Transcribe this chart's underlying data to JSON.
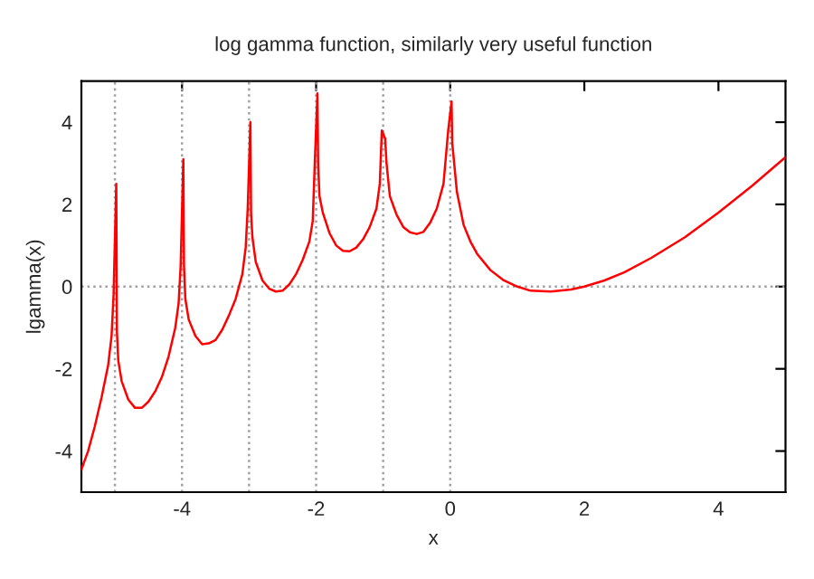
{
  "chart_data": {
    "type": "line",
    "title": "log gamma function, similarly very useful function",
    "xlabel": "x",
    "ylabel": "lgamma(x)",
    "xlim": [
      -5.5,
      5
    ],
    "ylim": [
      -5,
      5
    ],
    "xticks": [
      -4,
      -2,
      0,
      2,
      4
    ],
    "yticks": [
      -4,
      -2,
      0,
      2,
      4
    ],
    "grid": false,
    "legend": false,
    "marker": "none",
    "line_style": "solid",
    "ref_lines": [
      {
        "axis": "y",
        "value": 0,
        "color": "#a0a0a0",
        "line_style": "dotted"
      },
      {
        "axis": "x",
        "value": -5,
        "color": "#a0a0a0",
        "line_style": "dotted"
      },
      {
        "axis": "x",
        "value": -4,
        "color": "#a0a0a0",
        "line_style": "dotted"
      },
      {
        "axis": "x",
        "value": -3,
        "color": "#a0a0a0",
        "line_style": "dotted"
      },
      {
        "axis": "x",
        "value": -2,
        "color": "#a0a0a0",
        "line_style": "dotted"
      },
      {
        "axis": "x",
        "value": -1,
        "color": "#a0a0a0",
        "line_style": "dotted"
      },
      {
        "axis": "x",
        "value": 0,
        "color": "#a0a0a0",
        "line_style": "dotted"
      }
    ],
    "series": [
      {
        "color": "#ff0000",
        "x": [
          -5.5,
          -5.4,
          -5.3,
          -5.2,
          -5.1,
          -5.05,
          -5.02,
          -5.0,
          -4.98,
          -4.97,
          -4.95,
          -4.9,
          -4.8,
          -4.7,
          -4.6,
          -4.5,
          -4.4,
          -4.3,
          -4.2,
          -4.1,
          -4.05,
          -4.02,
          -4.0,
          -3.98,
          -3.97,
          -3.95,
          -3.9,
          -3.8,
          -3.7,
          -3.6,
          -3.5,
          -3.4,
          -3.3,
          -3.2,
          -3.1,
          -3.05,
          -3.02,
          -3.0,
          -2.98,
          -2.97,
          -2.95,
          -2.9,
          -2.8,
          -2.7,
          -2.6,
          -2.5,
          -2.4,
          -2.3,
          -2.2,
          -2.1,
          -2.05,
          -2.02,
          -2.0,
          -1.98,
          -1.97,
          -1.95,
          -1.9,
          -1.8,
          -1.7,
          -1.6,
          -1.5,
          -1.4,
          -1.3,
          -1.2,
          -1.1,
          -1.05,
          -1.02,
          -1.0,
          -0.98,
          -0.97,
          -0.95,
          -0.9,
          -0.8,
          -0.7,
          -0.6,
          -0.5,
          -0.4,
          -0.3,
          -0.2,
          -0.1,
          -0.03,
          0.0,
          0.02,
          0.03,
          0.1,
          0.2,
          0.3,
          0.4,
          0.6,
          0.8,
          1.0,
          1.2,
          1.5,
          1.8,
          2.0,
          2.3,
          2.6,
          3.0,
          3.5,
          4.0,
          4.5,
          5.0
        ],
        "values": [
          -4.45,
          -4.0,
          -3.4,
          -2.7,
          -1.9,
          -1.2,
          -0.2,
          null,
          2.5,
          -1.1,
          -1.8,
          -2.3,
          -2.75,
          -2.95,
          -2.95,
          -2.8,
          -2.55,
          -2.2,
          -1.7,
          -1.0,
          -0.4,
          0.5,
          null,
          3.1,
          0.5,
          -0.3,
          -0.8,
          -1.2,
          -1.4,
          -1.38,
          -1.3,
          -1.05,
          -0.7,
          -0.3,
          0.3,
          0.95,
          1.9,
          null,
          4.0,
          1.8,
          1.2,
          0.6,
          0.15,
          -0.05,
          -0.12,
          -0.1,
          0.05,
          0.3,
          0.65,
          1.1,
          1.6,
          3.0,
          null,
          4.7,
          3.0,
          2.2,
          1.8,
          1.3,
          1.0,
          0.87,
          0.86,
          0.95,
          1.15,
          1.45,
          1.9,
          2.5,
          3.8,
          null,
          null,
          3.6,
          3.0,
          2.2,
          1.75,
          1.45,
          1.32,
          1.28,
          1.33,
          1.55,
          1.9,
          2.5,
          3.8,
          null,
          4.5,
          3.5,
          2.3,
          1.5,
          1.1,
          0.8,
          0.4,
          0.15,
          0.0,
          -0.1,
          -0.12,
          -0.07,
          0.0,
          0.15,
          0.35,
          0.7,
          1.2,
          1.8,
          2.45,
          3.15
        ]
      }
    ]
  }
}
